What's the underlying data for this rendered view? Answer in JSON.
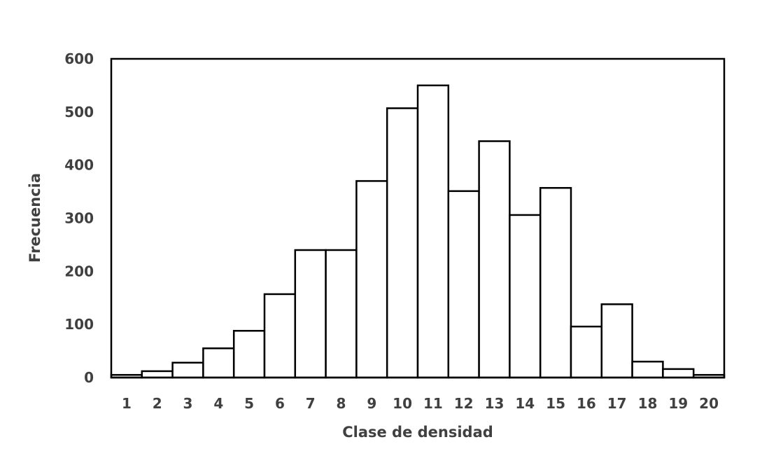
{
  "chart_data": {
    "type": "bar",
    "title": "",
    "xlabel": "Clase de densidad",
    "ylabel": "Frecuencia",
    "categories": [
      "1",
      "2",
      "3",
      "4",
      "5",
      "6",
      "7",
      "8",
      "9",
      "10",
      "11",
      "12",
      "13",
      "14",
      "15",
      "16",
      "17",
      "18",
      "19",
      "20"
    ],
    "values": [
      5,
      12,
      28,
      55,
      88,
      157,
      240,
      240,
      370,
      507,
      550,
      351,
      445,
      306,
      357,
      96,
      138,
      30,
      16,
      5
    ],
    "ylim": [
      0,
      600
    ],
    "yticks": [
      "0",
      "100",
      "200",
      "300",
      "400",
      "500",
      "600"
    ],
    "grid": false,
    "legend": "none",
    "colors": {
      "bar_fill": "#ffffff",
      "bar_stroke": "#000000",
      "text": "#404040"
    }
  }
}
